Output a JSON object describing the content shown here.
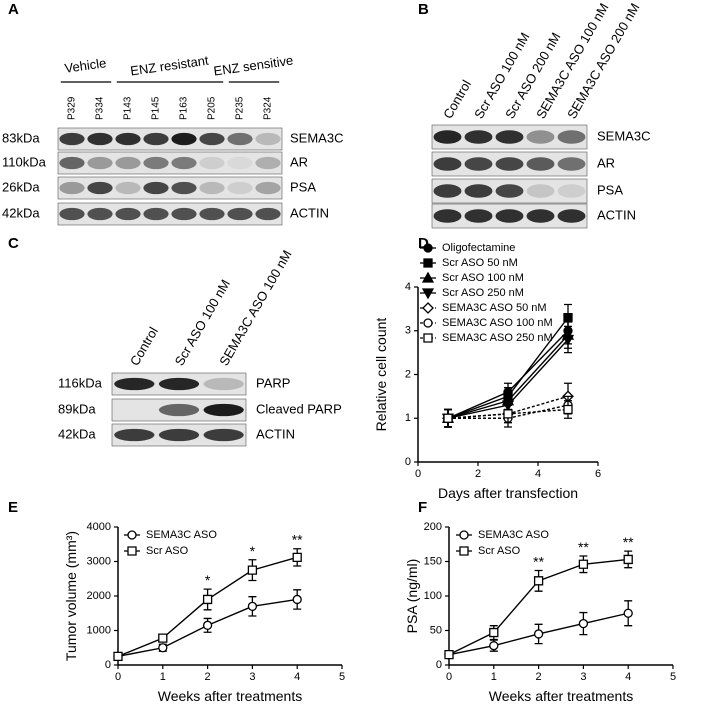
{
  "panel_labels": [
    "A",
    "B",
    "C",
    "D",
    "E",
    "F"
  ],
  "blots": [
    {
      "groups": [
        {
          "text": "Vehicle",
          "lanes": [
            0,
            1
          ]
        },
        {
          "text": "ENZ resistant",
          "lanes": [
            2,
            5
          ]
        },
        {
          "text": "ENZ sensitive",
          "lanes": [
            6,
            7
          ]
        }
      ],
      "lanes": [
        "P329",
        "P334",
        "P143",
        "P145",
        "P163",
        "P205",
        "P235",
        "P324"
      ],
      "rows": [
        {
          "kda": "83kDa",
          "protein": "SEMA3C"
        },
        {
          "kda": "110kDa",
          "protein": "AR"
        },
        {
          "kda": "26kDa",
          "protein": "PSA"
        },
        {
          "kda": "42kDa",
          "protein": "ACTIN"
        }
      ]
    },
    {
      "lanes": [
        "Control",
        "Scr ASO 100 nM",
        "Scr ASO 200 nM",
        "SEMA3C ASO 100 nM",
        "SEMA3C ASO 200 nM"
      ],
      "rows": [
        {
          "protein": "SEMA3C"
        },
        {
          "protein": "AR"
        },
        {
          "protein": "PSA"
        },
        {
          "protein": "ACTIN"
        }
      ]
    },
    {
      "lanes": [
        "Control",
        "Scr ASO 100 nM",
        "SEMA3C ASO 100 nM"
      ],
      "rows": [
        {
          "kda": "116kDa",
          "protein": "PARP"
        },
        {
          "kda": "89kDa",
          "protein": "Cleaved PARP"
        },
        {
          "kda": "42kDa",
          "protein": "ACTIN"
        }
      ]
    }
  ],
  "chart_data": [
    {
      "type": "line",
      "x_label": "Days after transfection",
      "y_label": "Relative cell count",
      "x": [
        1,
        3,
        5
      ],
      "xlim": [
        0,
        6
      ],
      "xticks": [
        0,
        2,
        4,
        6
      ],
      "ylim": [
        0,
        4
      ],
      "yticks": [
        0,
        1,
        2,
        3,
        4
      ],
      "series": [
        {
          "name": "Oligofectamine",
          "color": "#000000",
          "marker": "circle",
          "filled": true,
          "linestyle": "solid",
          "values": [
            1,
            1.6,
            3.0
          ],
          "errors": [
            0.2,
            0.2,
            0.3
          ]
        },
        {
          "name": "Scr ASO 50 nM",
          "color": "#000000",
          "marker": "square",
          "filled": true,
          "linestyle": "solid",
          "values": [
            1,
            1.5,
            3.3
          ],
          "errors": [
            0.2,
            0.2,
            0.3
          ]
        },
        {
          "name": "Scr ASO 100 nM",
          "color": "#000000",
          "marker": "triangle-up",
          "filled": true,
          "linestyle": "solid",
          "values": [
            1,
            1.4,
            2.9
          ],
          "errors": [
            0.2,
            0.2,
            0.3
          ]
        },
        {
          "name": "Scr ASO 250 nM",
          "color": "#000000",
          "marker": "triangle-down",
          "filled": true,
          "linestyle": "solid",
          "values": [
            1,
            1.3,
            2.8
          ],
          "errors": [
            0.2,
            0.2,
            0.3
          ]
        },
        {
          "name": "SEMA3C ASO 50 nM",
          "color": "#000000",
          "marker": "diamond",
          "filled": false,
          "linestyle": "dashed",
          "values": [
            1,
            1.1,
            1.5
          ],
          "errors": [
            0.2,
            0.2,
            0.3
          ]
        },
        {
          "name": "SEMA3C ASO 100 nM",
          "color": "#000000",
          "marker": "circle",
          "filled": false,
          "linestyle": "dashed",
          "values": [
            1,
            1.0,
            1.3
          ],
          "errors": [
            0.2,
            0.2,
            0.2
          ]
        },
        {
          "name": "SEMA3C ASO 250 nM",
          "color": "#000000",
          "marker": "square",
          "filled": false,
          "linestyle": "dashed",
          "values": [
            1,
            1.1,
            1.2
          ],
          "errors": [
            0.2,
            0.2,
            0.2
          ]
        }
      ]
    },
    {
      "type": "line",
      "x_label": "Weeks after treatments",
      "y_label": "Tumor volume (mm³)",
      "x": [
        0,
        1,
        2,
        3,
        4
      ],
      "xlim": [
        0,
        5
      ],
      "xticks": [
        0,
        1,
        2,
        3,
        4,
        5
      ],
      "ylim": [
        0,
        4000
      ],
      "yticks": [
        0,
        1000,
        2000,
        3000,
        4000
      ],
      "series": [
        {
          "name": "SEMA3C ASO",
          "color": "#000000",
          "marker": "circle",
          "filled": false,
          "linestyle": "solid",
          "values": [
            250,
            500,
            1150,
            1700,
            1900
          ],
          "errors": [
            60,
            100,
            200,
            280,
            280
          ]
        },
        {
          "name": "Scr ASO",
          "color": "#000000",
          "marker": "square",
          "filled": false,
          "linestyle": "solid",
          "values": [
            250,
            780,
            1900,
            2750,
            3120
          ],
          "errors": [
            60,
            100,
            300,
            300,
            250
          ]
        }
      ],
      "annotations": [
        {
          "text": "*",
          "x": 2
        },
        {
          "text": "*",
          "x": 3
        },
        {
          "text": "**",
          "x": 4
        }
      ]
    },
    {
      "type": "line",
      "x_label": "Weeks after treatments",
      "y_label": "PSA  (ng/ml)",
      "x": [
        0,
        1,
        2,
        3,
        4
      ],
      "xlim": [
        0,
        5
      ],
      "xticks": [
        0,
        1,
        2,
        3,
        4,
        5
      ],
      "ylim": [
        0,
        200
      ],
      "yticks": [
        0,
        50,
        100,
        150,
        200
      ],
      "series": [
        {
          "name": "SEMA3C ASO",
          "color": "#000000",
          "marker": "circle",
          "filled": false,
          "linestyle": "solid",
          "values": [
            15,
            28,
            45,
            60,
            75
          ],
          "errors": [
            4,
            8,
            14,
            16,
            18
          ]
        },
        {
          "name": "Scr ASO",
          "color": "#000000",
          "marker": "square",
          "filled": false,
          "linestyle": "solid",
          "values": [
            15,
            47,
            122,
            146,
            153
          ],
          "errors": [
            4,
            10,
            15,
            12,
            12
          ]
        }
      ],
      "annotations": [
        {
          "text": "**",
          "x": 2
        },
        {
          "text": "**",
          "x": 3
        },
        {
          "text": "**",
          "x": 4
        }
      ]
    }
  ]
}
